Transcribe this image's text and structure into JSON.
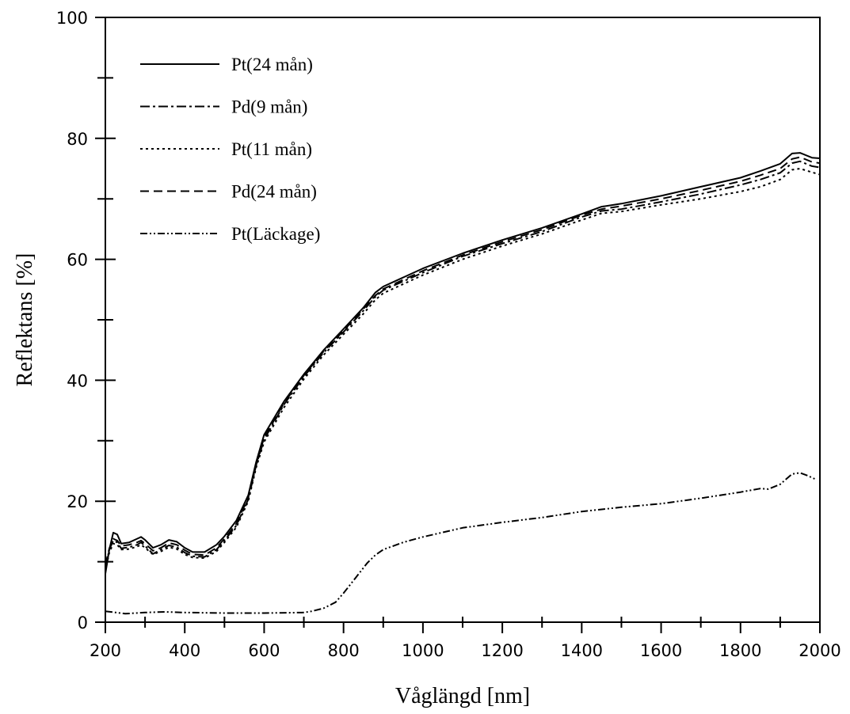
{
  "chart_data": {
    "type": "line",
    "title": "",
    "xlabel": "Våglängd [nm]",
    "ylabel": "Reflektans [%]",
    "xlim": [
      200,
      2000
    ],
    "ylim": [
      0,
      100
    ],
    "x_major_ticks": [
      200,
      400,
      600,
      800,
      1000,
      1200,
      1400,
      1600,
      1800,
      2000
    ],
    "y_major_ticks": [
      0,
      20,
      40,
      60,
      80,
      100
    ],
    "grid": false,
    "legend_position": "top-left",
    "series": [
      {
        "name": "Pt(24 mån)",
        "dash": "solid",
        "x": [
          200,
          210,
          220,
          230,
          240,
          260,
          280,
          290,
          300,
          320,
          340,
          360,
          380,
          400,
          420,
          450,
          480,
          500,
          530,
          560,
          580,
          600,
          650,
          700,
          750,
          800,
          850,
          880,
          900,
          1000,
          1100,
          1200,
          1300,
          1400,
          1450,
          1500,
          1600,
          1700,
          1800,
          1850,
          1900,
          1930,
          1950,
          1980,
          2000
        ],
        "y": [
          8,
          12,
          14.8,
          14.5,
          13,
          13.2,
          13.8,
          14.1,
          13.6,
          12.3,
          12.8,
          13.6,
          13.3,
          12.3,
          11.6,
          11.6,
          12.8,
          14.2,
          16.8,
          21,
          26.5,
          31,
          36.5,
          41,
          45,
          48.5,
          52,
          54.5,
          55.5,
          58.5,
          61,
          63.2,
          65.2,
          67.5,
          68.7,
          69.2,
          70.5,
          72,
          73.5,
          74.6,
          75.8,
          77.5,
          77.6,
          76.8,
          76.7
        ]
      },
      {
        "name": "Pd(9 mån)",
        "dash": "dash-dot",
        "x": [
          200,
          210,
          220,
          230,
          240,
          260,
          280,
          290,
          300,
          320,
          340,
          360,
          380,
          400,
          420,
          450,
          480,
          500,
          530,
          560,
          580,
          600,
          650,
          700,
          750,
          800,
          850,
          880,
          900,
          1000,
          1100,
          1200,
          1300,
          1400,
          1450,
          1500,
          1600,
          1700,
          1800,
          1850,
          1900,
          1930,
          1950,
          1980,
          2000
        ],
        "y": [
          9,
          12,
          13.5,
          13.2,
          12.2,
          12.4,
          12.8,
          13.2,
          12.6,
          11.3,
          12,
          12.7,
          12.4,
          11.5,
          10.9,
          10.8,
          12,
          13.5,
          16,
          20.3,
          26,
          30.2,
          36,
          40.6,
          44.6,
          48,
          51.5,
          53.8,
          54.9,
          57.8,
          60.5,
          62.6,
          64.6,
          67,
          68,
          68.3,
          69.5,
          70.8,
          72.3,
          73.2,
          74.3,
          75.9,
          76.2,
          75.4,
          75.2
        ]
      },
      {
        "name": "Pt(11 mån)",
        "dash": "dotted",
        "x": [
          200,
          210,
          220,
          230,
          240,
          260,
          280,
          290,
          300,
          320,
          340,
          360,
          380,
          400,
          420,
          450,
          480,
          500,
          530,
          560,
          580,
          600,
          650,
          700,
          750,
          800,
          850,
          880,
          900,
          1000,
          1100,
          1200,
          1300,
          1400,
          1450,
          1500,
          1600,
          1700,
          1800,
          1850,
          1900,
          1930,
          1950,
          1980,
          2000
        ],
        "y": [
          8.5,
          11.5,
          13,
          12.8,
          12,
          12.1,
          12.5,
          12.8,
          12.3,
          11.2,
          11.7,
          12.4,
          12.1,
          11.2,
          10.7,
          10.6,
          11.7,
          13.2,
          15.7,
          20,
          25.6,
          29.8,
          35.5,
          40.2,
          44.2,
          47.6,
          51,
          53.3,
          54.4,
          57.4,
          60,
          62.2,
          64.2,
          66.5,
          67.6,
          67.9,
          69,
          70,
          71.2,
          72,
          73.2,
          74.8,
          75,
          74.4,
          74
        ]
      },
      {
        "name": "Pd(24 mån)",
        "dash": "dashed",
        "x": [
          200,
          210,
          220,
          230,
          240,
          260,
          280,
          290,
          300,
          320,
          340,
          360,
          380,
          400,
          420,
          450,
          480,
          500,
          530,
          560,
          580,
          600,
          650,
          700,
          750,
          800,
          850,
          880,
          900,
          1000,
          1100,
          1200,
          1300,
          1400,
          1450,
          1500,
          1600,
          1700,
          1800,
          1850,
          1900,
          1930,
          1950,
          1980,
          2000
        ],
        "y": [
          9.5,
          12.2,
          13.8,
          13.5,
          12.6,
          12.8,
          13.2,
          13.5,
          13,
          11.8,
          12.3,
          13.1,
          12.8,
          11.9,
          11.2,
          11.1,
          12.3,
          13.8,
          16.3,
          20.6,
          26.2,
          30.5,
          36.2,
          40.8,
          44.8,
          48.2,
          51.8,
          54,
          55.1,
          58.1,
          60.7,
          62.9,
          64.9,
          67.3,
          68.3,
          68.8,
          70,
          71.4,
          72.9,
          73.9,
          75,
          76.6,
          76.9,
          76.1,
          75.9
        ]
      },
      {
        "name": "Pt(Läckage)",
        "dash": "dash-dot-dot",
        "x": [
          200,
          250,
          300,
          350,
          400,
          500,
          600,
          700,
          720,
          750,
          780,
          800,
          830,
          860,
          880,
          900,
          950,
          1000,
          1100,
          1200,
          1300,
          1400,
          1500,
          1600,
          1700,
          1800,
          1850,
          1870,
          1900,
          1930,
          1950,
          1970,
          1990
        ],
        "y": [
          1.8,
          1.4,
          1.6,
          1.7,
          1.6,
          1.5,
          1.5,
          1.6,
          1.8,
          2.3,
          3.3,
          4.8,
          7.3,
          9.8,
          11.1,
          12,
          13.2,
          14.1,
          15.6,
          16.5,
          17.3,
          18.3,
          19,
          19.6,
          20.5,
          21.5,
          22.1,
          22,
          22.8,
          24.5,
          24.7,
          24.2,
          23.6
        ]
      }
    ]
  }
}
